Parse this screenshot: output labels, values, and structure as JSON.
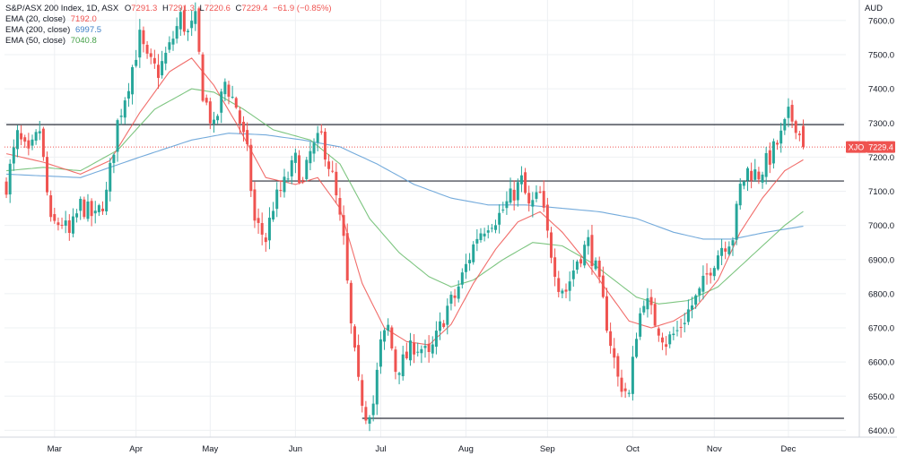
{
  "legend": {
    "title": "S&P/ASX 200 Index, 1D, ASX",
    "ohlc": {
      "o_label": "O",
      "o_value": "7291.3",
      "h_label": "H",
      "h_value": "7291.3",
      "l_label": "L",
      "l_value": "7220.6",
      "c_label": "C",
      "c_value": "7229.4",
      "change": "−61.9 (−0.85%)"
    },
    "ema20": {
      "label": "EMA (20, close)",
      "value": "7192.0"
    },
    "ema200": {
      "label": "EMA (200, close)",
      "value": "6997.5"
    },
    "ema50": {
      "label": "EMA (50, close)",
      "value": "7040.8"
    }
  },
  "currency": "AUD",
  "price_tag": {
    "symbol": "XJO",
    "value": "7229.4"
  },
  "colors": {
    "up": "#26a69a",
    "down": "#ef5350",
    "ema20": "#ef5350",
    "ema200": "#5b9bd5",
    "ema50": "#66bb6a",
    "grid": "#eef0f3",
    "level": "#2a2e39",
    "text": "#131722"
  },
  "chart_data": {
    "type": "candlestick",
    "y_ticks": [
      6400,
      6500,
      6600,
      6700,
      6800,
      6900,
      7000,
      7100,
      7200,
      7300,
      7400,
      7500,
      7600
    ],
    "ylim": [
      6380,
      7660
    ],
    "x_ticks": [
      "Mar",
      "Apr",
      "May",
      "Jun",
      "Jul",
      "Aug",
      "Sep",
      "Oct",
      "Nov",
      "Dec"
    ],
    "x_tick_index": [
      13,
      35,
      55,
      78,
      101,
      124,
      146,
      169,
      191,
      211
    ],
    "horizontal_levels": [
      {
        "value": 7295,
        "from_index": 0,
        "to_index": 226
      },
      {
        "value": 7130,
        "from_index": 66,
        "to_index": 226
      },
      {
        "value": 6435,
        "from_index": 96,
        "to_index": 226
      }
    ],
    "last_price": 7229.4,
    "anchors": [
      [
        0,
        7120
      ],
      [
        3,
        7260
      ],
      [
        6,
        7200
      ],
      [
        9,
        7280
      ],
      [
        12,
        7000
      ],
      [
        15,
        7010
      ],
      [
        17,
        6970
      ],
      [
        20,
        7060
      ],
      [
        24,
        7020
      ],
      [
        27,
        7090
      ],
      [
        30,
        7300
      ],
      [
        33,
        7420
      ],
      [
        36,
        7550
      ],
      [
        38,
        7480
      ],
      [
        41,
        7450
      ],
      [
        44,
        7520
      ],
      [
        47,
        7610
      ],
      [
        49,
        7560
      ],
      [
        51,
        7600
      ],
      [
        53,
        7390
      ],
      [
        56,
        7280
      ],
      [
        59,
        7420
      ],
      [
        62,
        7350
      ],
      [
        65,
        7210
      ],
      [
        67,
        7010
      ],
      [
        70,
        6960
      ],
      [
        72,
        7060
      ],
      [
        75,
        7120
      ],
      [
        78,
        7190
      ],
      [
        80,
        7120
      ],
      [
        82,
        7210
      ],
      [
        85,
        7260
      ],
      [
        88,
        7140
      ],
      [
        91,
        6950
      ],
      [
        93,
        6700
      ],
      [
        95,
        6530
      ],
      [
        97,
        6450
      ],
      [
        99,
        6480
      ],
      [
        101,
        6650
      ],
      [
        103,
        6700
      ],
      [
        105,
        6580
      ],
      [
        107,
        6600
      ],
      [
        110,
        6650
      ],
      [
        112,
        6640
      ],
      [
        114,
        6610
      ],
      [
        117,
        6700
      ],
      [
        119,
        6760
      ],
      [
        121,
        6790
      ],
      [
        124,
        6880
      ],
      [
        127,
        6970
      ],
      [
        130,
        7010
      ],
      [
        133,
        7030
      ],
      [
        136,
        7080
      ],
      [
        139,
        7130
      ],
      [
        141,
        7050
      ],
      [
        144,
        7090
      ],
      [
        146,
        6970
      ],
      [
        149,
        6830
      ],
      [
        151,
        6810
      ],
      [
        154,
        6900
      ],
      [
        157,
        6950
      ],
      [
        159,
        6870
      ],
      [
        161,
        6770
      ],
      [
        163,
        6660
      ],
      [
        165,
        6550
      ],
      [
        168,
        6500
      ],
      [
        170,
        6690
      ],
      [
        172,
        6790
      ],
      [
        175,
        6720
      ],
      [
        178,
        6660
      ],
      [
        181,
        6690
      ],
      [
        184,
        6750
      ],
      [
        187,
        6800
      ],
      [
        190,
        6880
      ],
      [
        193,
        6940
      ],
      [
        196,
        6970
      ],
      [
        198,
        7110
      ],
      [
        200,
        7160
      ],
      [
        203,
        7150
      ],
      [
        206,
        7200
      ],
      [
        209,
        7260
      ],
      [
        211,
        7320
      ],
      [
        213,
        7300
      ],
      [
        215,
        7229.4
      ]
    ],
    "ema20": [
      [
        0,
        7210
      ],
      [
        10,
        7185
      ],
      [
        20,
        7150
      ],
      [
        28,
        7190
      ],
      [
        36,
        7330
      ],
      [
        44,
        7450
      ],
      [
        50,
        7490
      ],
      [
        56,
        7410
      ],
      [
        62,
        7300
      ],
      [
        70,
        7140
      ],
      [
        78,
        7120
      ],
      [
        84,
        7140
      ],
      [
        90,
        7050
      ],
      [
        96,
        6830
      ],
      [
        102,
        6700
      ],
      [
        108,
        6660
      ],
      [
        114,
        6650
      ],
      [
        120,
        6710
      ],
      [
        126,
        6830
      ],
      [
        132,
        6930
      ],
      [
        138,
        7010
      ],
      [
        144,
        7040
      ],
      [
        150,
        6980
      ],
      [
        156,
        6900
      ],
      [
        162,
        6810
      ],
      [
        168,
        6720
      ],
      [
        174,
        6700
      ],
      [
        180,
        6720
      ],
      [
        186,
        6760
      ],
      [
        192,
        6840
      ],
      [
        198,
        6980
      ],
      [
        204,
        7080
      ],
      [
        210,
        7160
      ],
      [
        215,
        7192
      ]
    ],
    "ema50": [
      [
        0,
        7160
      ],
      [
        10,
        7170
      ],
      [
        20,
        7160
      ],
      [
        30,
        7220
      ],
      [
        40,
        7340
      ],
      [
        50,
        7400
      ],
      [
        56,
        7390
      ],
      [
        64,
        7340
      ],
      [
        72,
        7280
      ],
      [
        82,
        7250
      ],
      [
        90,
        7180
      ],
      [
        98,
        7020
      ],
      [
        106,
        6920
      ],
      [
        114,
        6850
      ],
      [
        120,
        6820
      ],
      [
        126,
        6840
      ],
      [
        134,
        6900
      ],
      [
        142,
        6950
      ],
      [
        150,
        6940
      ],
      [
        158,
        6890
      ],
      [
        164,
        6840
      ],
      [
        170,
        6790
      ],
      [
        176,
        6770
      ],
      [
        184,
        6780
      ],
      [
        192,
        6820
      ],
      [
        198,
        6880
      ],
      [
        204,
        6940
      ],
      [
        210,
        7000
      ],
      [
        215,
        7040.8
      ]
    ],
    "ema200": [
      [
        0,
        7150
      ],
      [
        20,
        7140
      ],
      [
        36,
        7200
      ],
      [
        50,
        7250
      ],
      [
        60,
        7270
      ],
      [
        70,
        7265
      ],
      [
        80,
        7250
      ],
      [
        90,
        7230
      ],
      [
        100,
        7180
      ],
      [
        110,
        7120
      ],
      [
        120,
        7080
      ],
      [
        130,
        7060
      ],
      [
        140,
        7060
      ],
      [
        150,
        7050
      ],
      [
        160,
        7040
      ],
      [
        170,
        7020
      ],
      [
        180,
        6980
      ],
      [
        188,
        6960
      ],
      [
        196,
        6960
      ],
      [
        205,
        6980
      ],
      [
        215,
        6997.5
      ]
    ]
  }
}
